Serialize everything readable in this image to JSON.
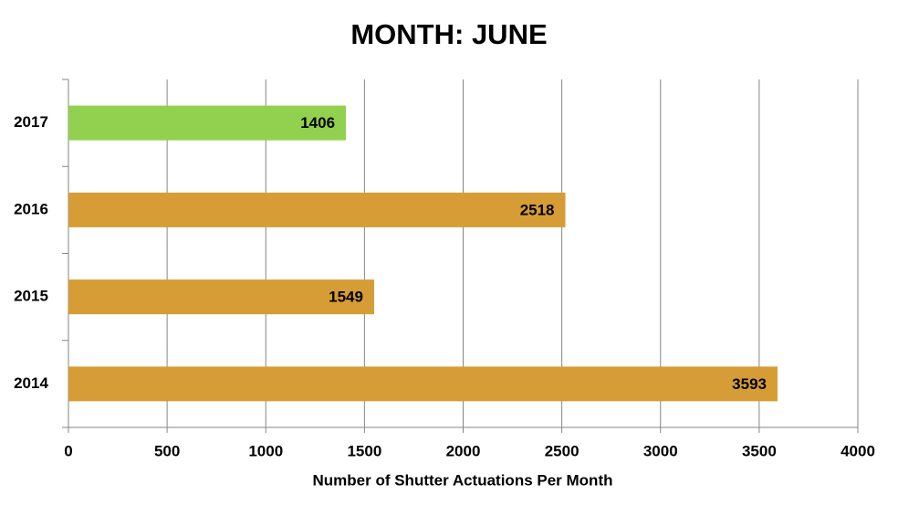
{
  "chart_data": {
    "type": "hbar",
    "title": "MONTH:  JUNE",
    "x_label": "Number of Shutter Actuations Per Month",
    "categories": [
      "2017",
      "2016",
      "2015",
      "2014"
    ],
    "values": [
      1406,
      2518,
      1549,
      3593
    ],
    "colors": [
      "#92d050",
      "#d69d36",
      "#d69d36",
      "#d69d36"
    ],
    "xlim": [
      0,
      4000
    ],
    "xticks": [
      0,
      500,
      1000,
      1500,
      2000,
      2500,
      3000,
      3500,
      4000
    ],
    "grid": true
  }
}
